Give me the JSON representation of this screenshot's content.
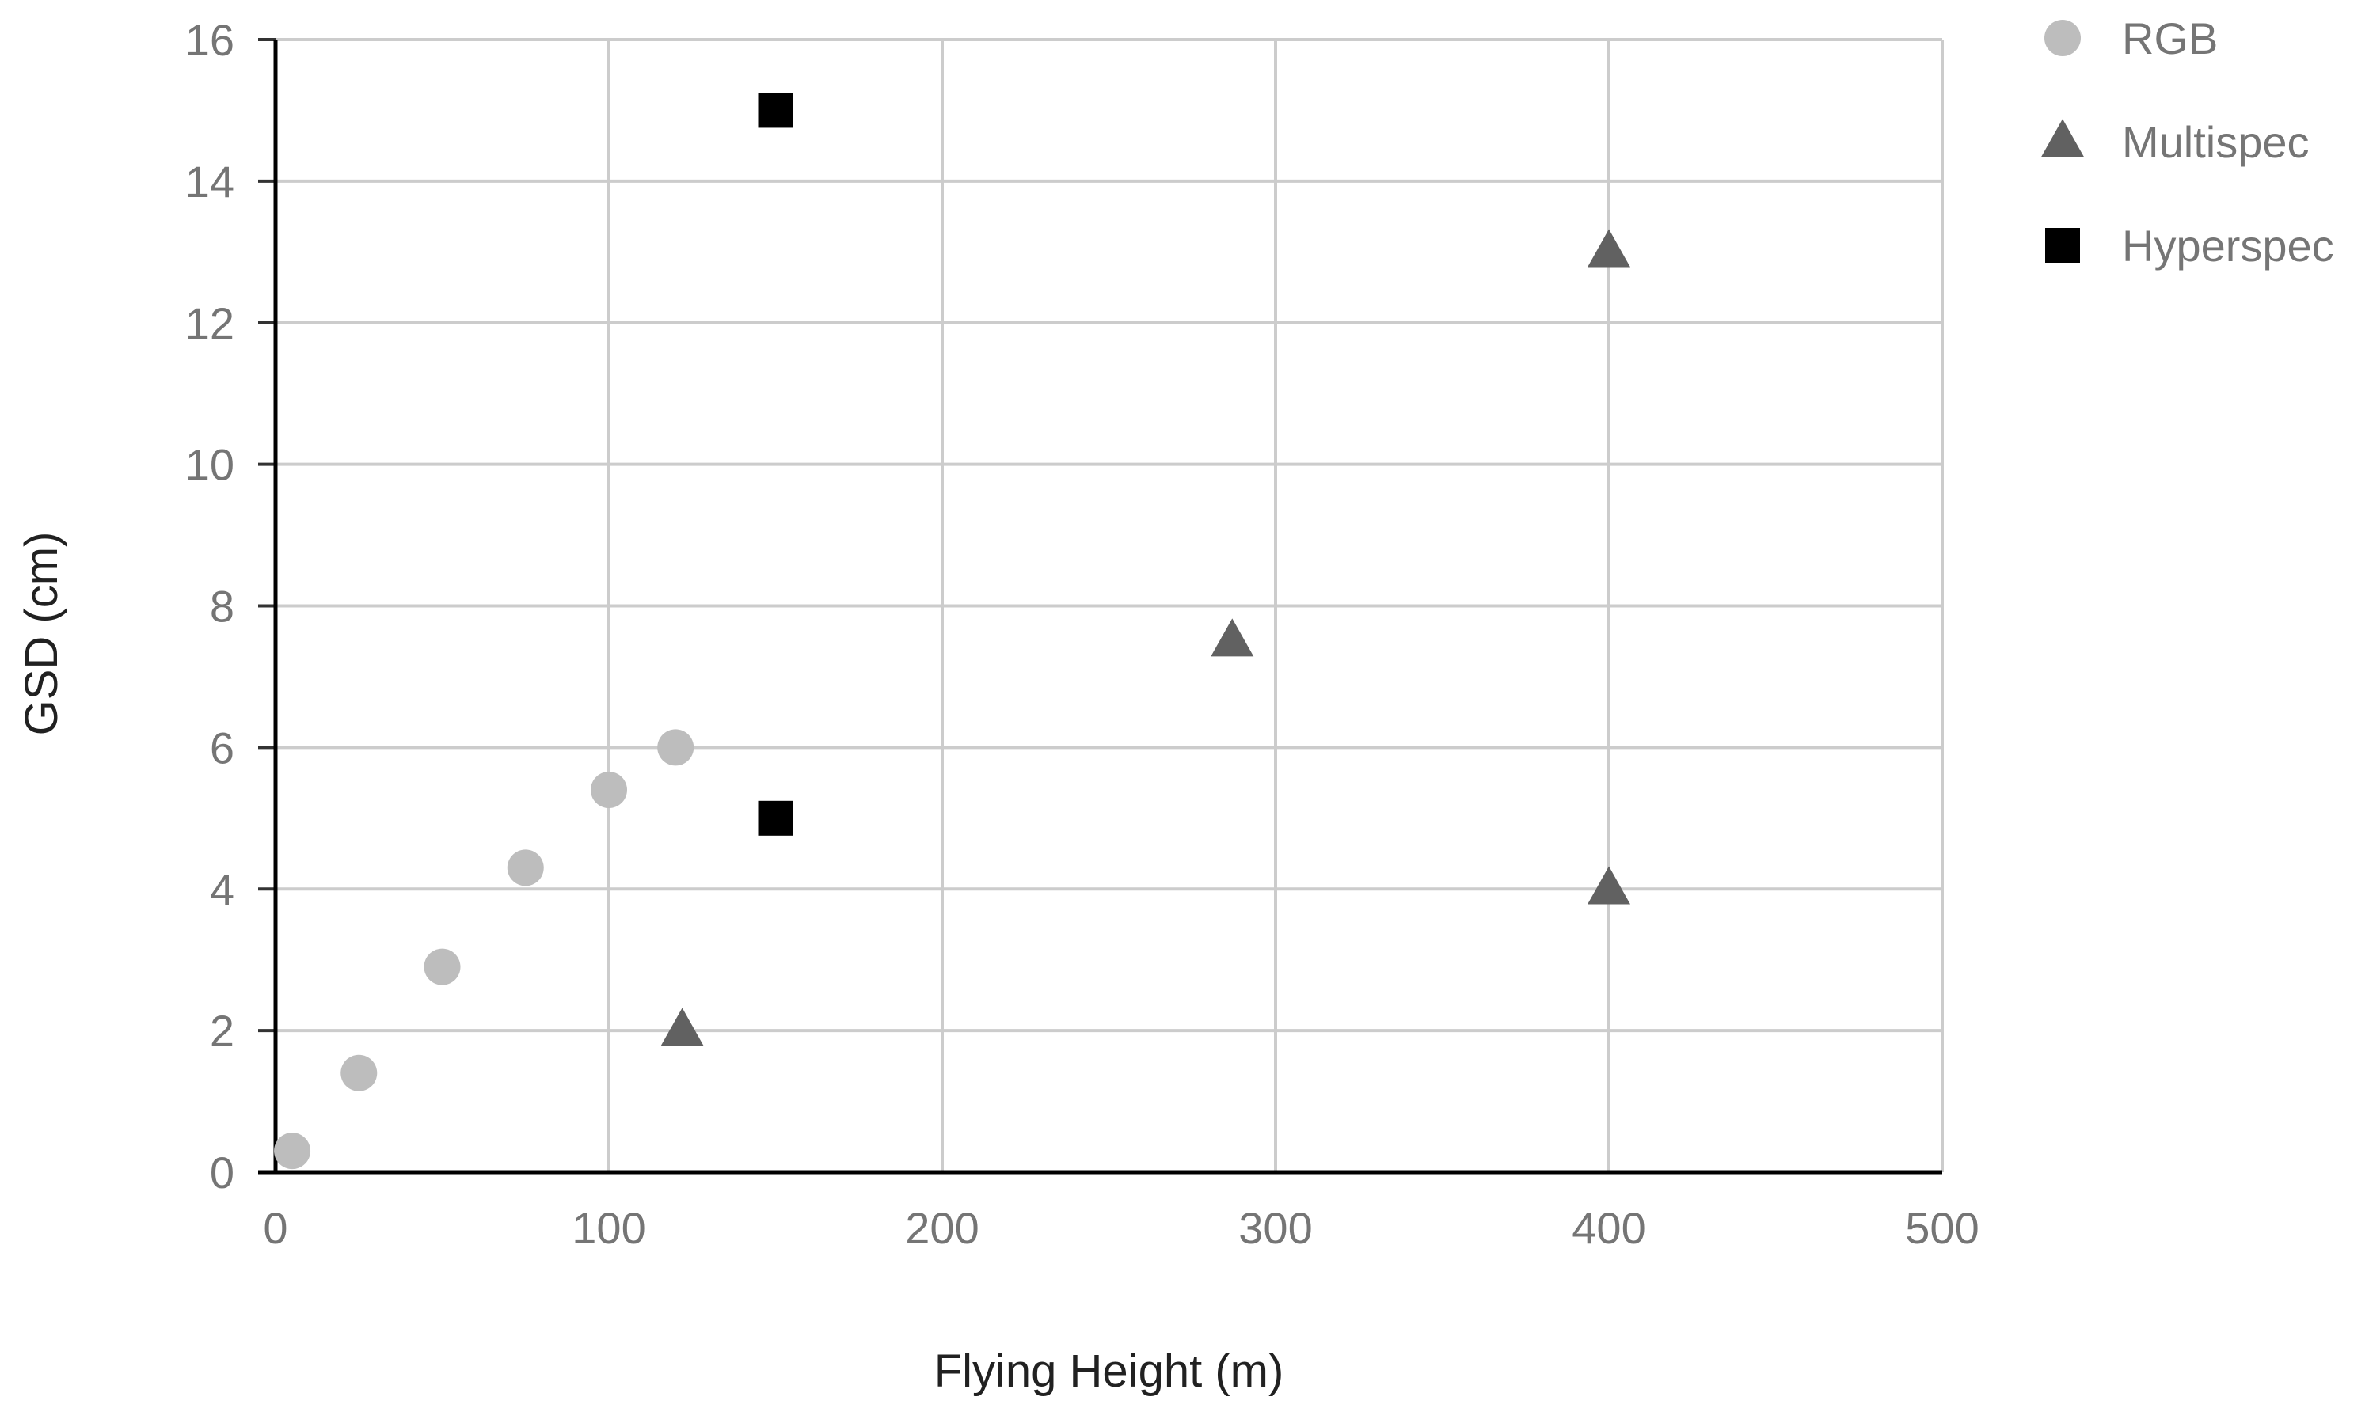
{
  "chart_data": {
    "type": "scatter",
    "title": "",
    "xlabel": "Flying Height (m)",
    "ylabel": "GSD (cm)",
    "xlim": [
      0,
      500
    ],
    "ylim": [
      0,
      16
    ],
    "x_ticks": [
      0,
      100,
      200,
      300,
      400,
      500
    ],
    "y_ticks": [
      0,
      2,
      4,
      6,
      8,
      10,
      12,
      14,
      16
    ],
    "grid": true,
    "legend_position": "right",
    "series": [
      {
        "name": "RGB",
        "marker": "circle",
        "color": "#bdbdbd",
        "points": [
          [
            5,
            0.3
          ],
          [
            25,
            1.4
          ],
          [
            50,
            2.9
          ],
          [
            75,
            4.3
          ],
          [
            100,
            5.4
          ],
          [
            120,
            6.0
          ]
        ]
      },
      {
        "name": "Multispec",
        "marker": "triangle",
        "color": "#616161",
        "points": [
          [
            122,
            2.0
          ],
          [
            287,
            7.5
          ],
          [
            400,
            4.0
          ],
          [
            400,
            13.0
          ]
        ]
      },
      {
        "name": "Hyperspec",
        "marker": "square",
        "color": "#000000",
        "points": [
          [
            150,
            15.0
          ],
          [
            150,
            5.0
          ]
        ]
      }
    ]
  }
}
